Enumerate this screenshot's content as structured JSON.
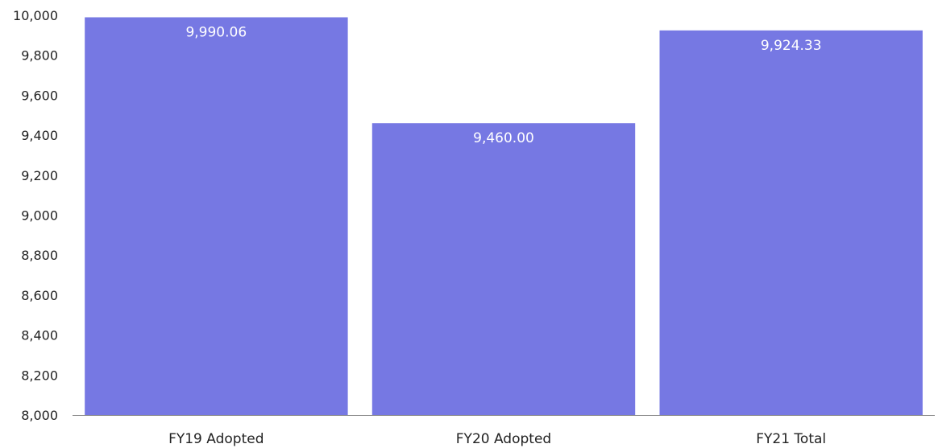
{
  "chart_data": {
    "type": "bar",
    "title": "",
    "xlabel": "",
    "ylabel": "",
    "categories": [
      "FY19 Adopted",
      "FY20 Adopted",
      "FY21 Total"
    ],
    "values": [
      9990.06,
      9460.0,
      9924.33
    ],
    "data_labels": [
      "9,990.06",
      "9,460.00",
      "9,924.33"
    ],
    "ylim": [
      8000,
      10000
    ],
    "yticks": [
      8000,
      8200,
      8400,
      8600,
      8800,
      9000,
      9200,
      9400,
      9600,
      9800,
      10000
    ],
    "ytick_labels": [
      "8,000",
      "8,200",
      "8,400",
      "8,600",
      "8,800",
      "9,000",
      "9,200",
      "9,400",
      "9,600",
      "9,800",
      "10,000"
    ],
    "grid": false,
    "legend": "none",
    "bar_color": "#7678e3",
    "axis_color": "#888888"
  }
}
